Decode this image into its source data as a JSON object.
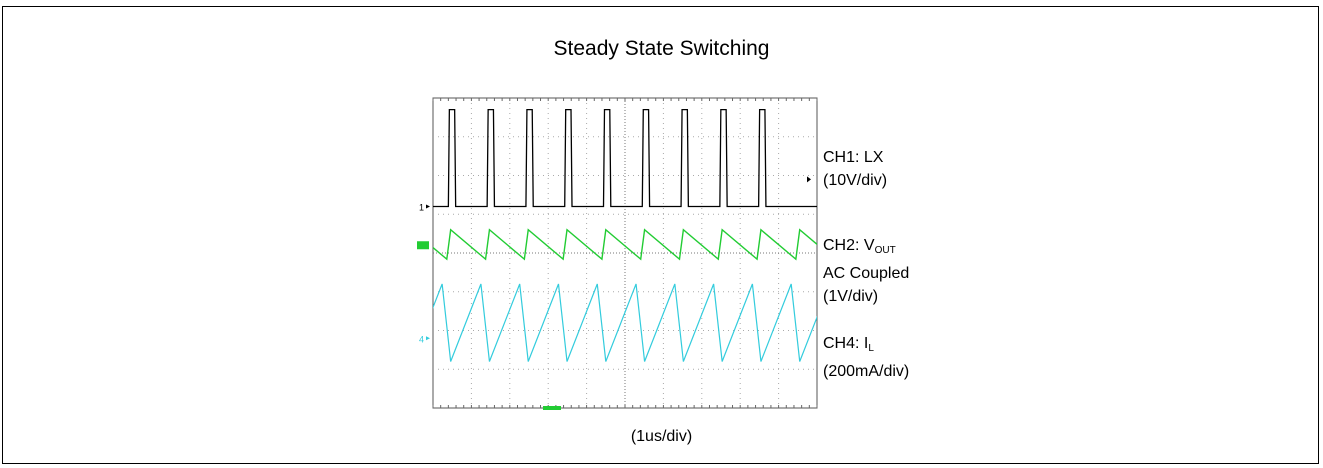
{
  "chart_data": {
    "type": "line",
    "title": "Steady State Switching",
    "xlabel": "(1us/div)",
    "x_divisions": 10,
    "y_divisions": 8,
    "grid": true,
    "time_per_div_us": 1,
    "series": [
      {
        "label_line1": "CH1: LX",
        "label_line2": "(10V/div)",
        "color": "#000000",
        "ground_marker": "1",
        "ground_div_from_top": 2.8,
        "high_div": 2.5,
        "pulse_times_div": [
          0.4,
          1.41,
          2.42,
          3.43,
          4.44,
          5.45,
          6.46,
          7.47,
          8.48
        ],
        "pulse_width_div": 0.19
      },
      {
        "label_prefix": "CH2: V",
        "label_sub": "OUT",
        "label_line2": "AC Coupled",
        "label_line3": "(1V/div)",
        "color": "#22cc33",
        "ground_div_from_top": 3.8,
        "ripple_div": 0.4,
        "period_div": 1.01,
        "start_phase_div": 0.45
      },
      {
        "label_prefix": "CH4: I",
        "label_sub": "L",
        "label_line2": "(200mA/div)",
        "color": "#33ccdd",
        "ground_marker": "4",
        "ground_div_from_top": 6.2,
        "min_div_from_top": 6.8,
        "max_div_from_top": 4.8,
        "period_div": 1.01,
        "start_phase_div": 0.45
      }
    ]
  }
}
